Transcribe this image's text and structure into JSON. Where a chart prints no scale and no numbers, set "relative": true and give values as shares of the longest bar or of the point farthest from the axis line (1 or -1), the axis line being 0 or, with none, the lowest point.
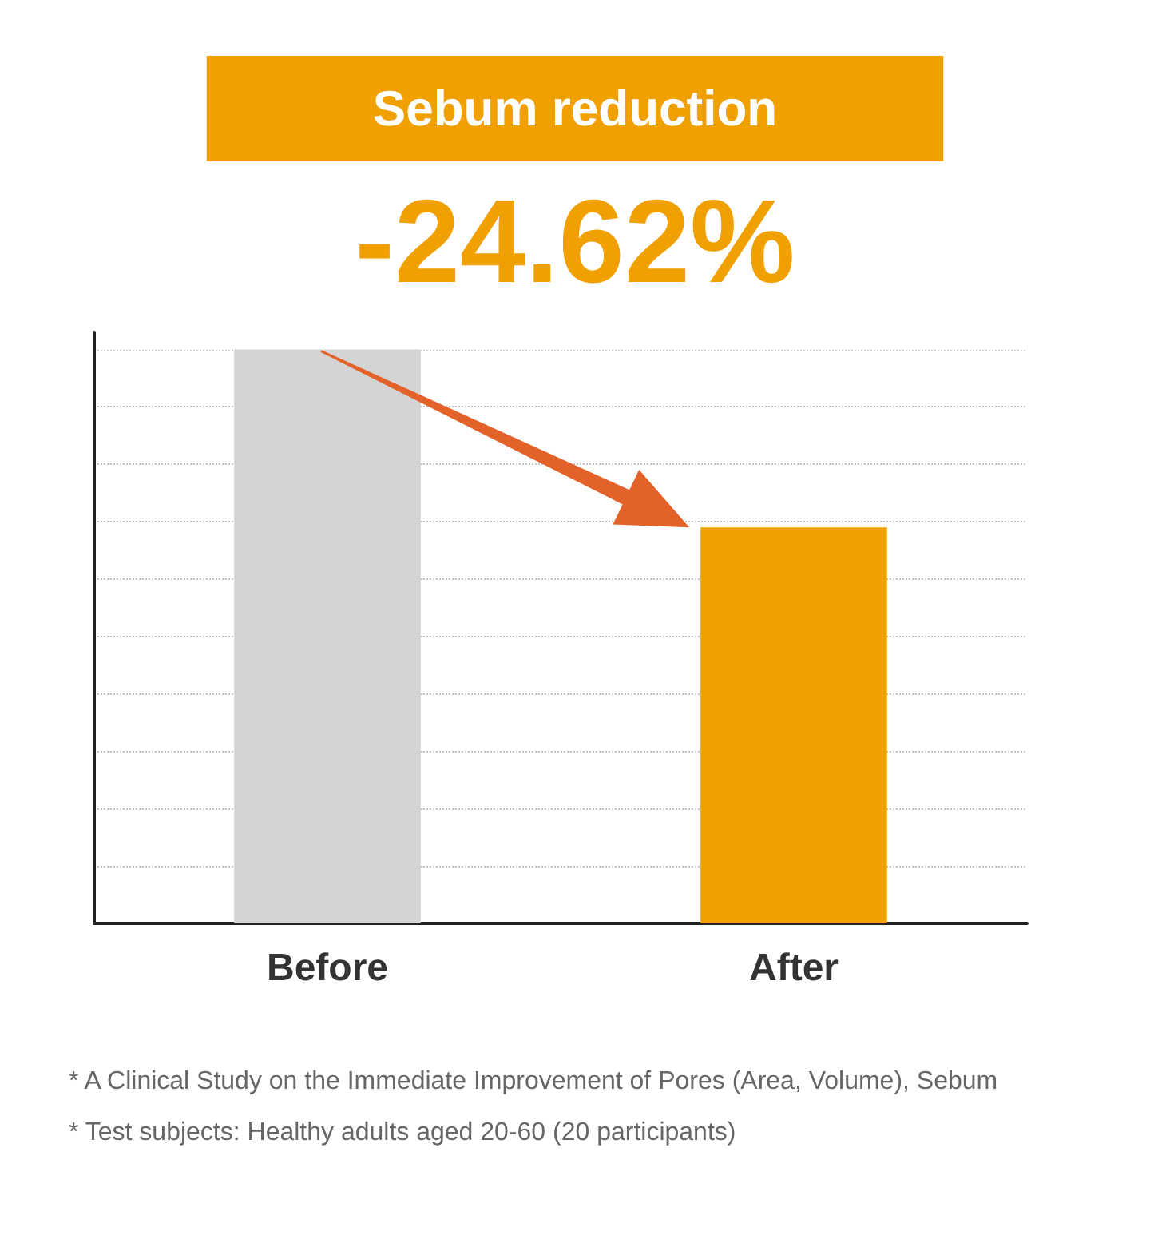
{
  "chart_data": {
    "type": "bar",
    "title": "Sebum reduction",
    "subtitle": "-24.62%",
    "categories": [
      "Before",
      "After"
    ],
    "values": [
      1,
      0.69
    ],
    "colors": [
      "#d4d4d4",
      "#f0a000"
    ],
    "relative": true,
    "grid": "y",
    "annotations": [
      "* A Clinical Study on the Immediate Improvement of Pores (Area, Volume), Sebum",
      "* Test subjects: Healthy adults aged 20-60 (20 participants)"
    ]
  }
}
